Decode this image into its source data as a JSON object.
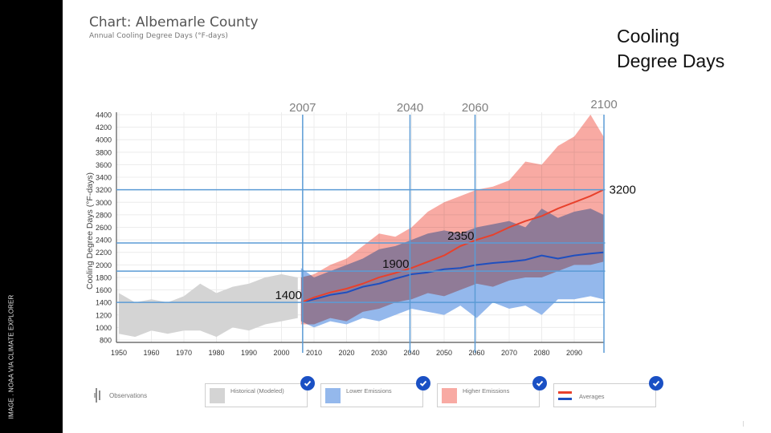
{
  "side_credit": "IMAGE . NOAA VIA CLIMATE EXPLORER",
  "header": {
    "title": "Chart: Albemarle County",
    "subtitle": "Annual Cooling Degree Days (°F-days)"
  },
  "slide_title": {
    "line1": "Cooling",
    "line2": "Degree Days"
  },
  "legend": {
    "observations": "Observations",
    "items": [
      {
        "label": "Historical (Modeled)",
        "checked": true,
        "color": "#d4d4d4"
      },
      {
        "label": "Lower Emissions",
        "checked": true,
        "color": "#94b8ec"
      },
      {
        "label": "Higher Emissions",
        "checked": true,
        "color": "#f8aaa3"
      },
      {
        "label": "Averages",
        "checked": true,
        "colors": [
          "#e8412c",
          "#1f4fbf"
        ]
      }
    ]
  },
  "colors": {
    "annotation_line": "#5b9bd5",
    "check_badge": "#1a50c4",
    "historical_fill": "#d4d4d4",
    "lower_fill": "#94b8ec",
    "higher_fill": "#f8aaa3",
    "higher_avg": "#e8412c",
    "lower_avg": "#1f4fbf"
  },
  "chart_data": {
    "type": "area",
    "title": "Chart: Albemarle County",
    "subtitle": "Annual Cooling Degree Days (°F-days)",
    "xlabel": "",
    "ylabel": "Cooling Degree Days (°F-days)",
    "xlim": [
      1950,
      2099
    ],
    "ylim": [
      800,
      4400
    ],
    "grid": true,
    "legend_position": "bottom",
    "x_ticks": [
      1950,
      1960,
      1970,
      1980,
      1990,
      2000,
      2010,
      2020,
      2030,
      2040,
      2050,
      2060,
      2070,
      2080,
      2090
    ],
    "y_ticks": [
      800,
      1000,
      1200,
      1400,
      1600,
      1800,
      2000,
      2200,
      2400,
      2600,
      2800,
      3000,
      3200,
      3400,
      3600,
      3800,
      4000,
      4200,
      4400
    ],
    "series": [
      {
        "name": "Historical (Modeled)",
        "kind": "band",
        "years": [
          1950,
          1955,
          1960,
          1965,
          1970,
          1975,
          1980,
          1985,
          1990,
          1995,
          2000,
          2005
        ],
        "high": [
          1550,
          1400,
          1450,
          1400,
          1500,
          1700,
          1550,
          1650,
          1700,
          1800,
          1850,
          1800
        ],
        "low": [
          900,
          850,
          950,
          900,
          950,
          950,
          850,
          1000,
          950,
          1050,
          1100,
          1150
        ]
      },
      {
        "name": "Lower Emissions",
        "kind": "band",
        "years": [
          2006,
          2010,
          2015,
          2020,
          2025,
          2030,
          2035,
          2040,
          2045,
          2050,
          2055,
          2060,
          2065,
          2070,
          2075,
          2080,
          2085,
          2090,
          2095,
          2099
        ],
        "high": [
          1950,
          1800,
          1900,
          2000,
          2100,
          2250,
          2300,
          2400,
          2500,
          2550,
          2500,
          2600,
          2650,
          2700,
          2600,
          2900,
          2750,
          2850,
          2900,
          2800
        ],
        "low": [
          1100,
          1000,
          1100,
          1050,
          1150,
          1100,
          1200,
          1300,
          1250,
          1200,
          1350,
          1150,
          1400,
          1300,
          1350,
          1200,
          1450,
          1450,
          1500,
          1450
        ]
      },
      {
        "name": "Higher Emissions",
        "kind": "band",
        "years": [
          2006,
          2010,
          2015,
          2020,
          2025,
          2030,
          2035,
          2040,
          2045,
          2050,
          2055,
          2060,
          2065,
          2070,
          2075,
          2080,
          2085,
          2090,
          2095,
          2099
        ],
        "high": [
          1800,
          1850,
          2000,
          2100,
          2300,
          2500,
          2450,
          2600,
          2850,
          3000,
          3100,
          3200,
          3250,
          3350,
          3650,
          3600,
          3900,
          4050,
          4400,
          4050
        ],
        "low": [
          1050,
          1050,
          1150,
          1100,
          1250,
          1300,
          1400,
          1450,
          1550,
          1500,
          1600,
          1700,
          1650,
          1750,
          1800,
          1800,
          1900,
          2000,
          2000,
          2050
        ]
      },
      {
        "name": "Lower Emissions Average",
        "kind": "line",
        "years": [
          2006,
          2010,
          2015,
          2020,
          2025,
          2030,
          2035,
          2040,
          2045,
          2050,
          2055,
          2060,
          2065,
          2070,
          2075,
          2080,
          2085,
          2090,
          2095,
          2099
        ],
        "values": [
          1400,
          1450,
          1520,
          1560,
          1650,
          1700,
          1780,
          1850,
          1880,
          1930,
          1950,
          2000,
          2030,
          2050,
          2080,
          2150,
          2100,
          2150,
          2180,
          2200
        ]
      },
      {
        "name": "Higher Emissions Average",
        "kind": "line",
        "years": [
          2006,
          2010,
          2015,
          2020,
          2025,
          2030,
          2035,
          2040,
          2045,
          2050,
          2055,
          2060,
          2065,
          2070,
          2075,
          2080,
          2085,
          2090,
          2095,
          2099
        ],
        "values": [
          1400,
          1480,
          1560,
          1620,
          1700,
          1800,
          1870,
          1950,
          2050,
          2150,
          2300,
          2400,
          2480,
          2600,
          2700,
          2780,
          2900,
          3000,
          3100,
          3200
        ]
      }
    ],
    "annotations": {
      "vertical": [
        {
          "label": "2007",
          "year": 2007
        },
        {
          "label": "2040",
          "year": 2040
        },
        {
          "label": "2060",
          "year": 2060
        },
        {
          "label": "2100",
          "year": 2100
        }
      ],
      "horizontal": [
        {
          "label": "1400",
          "value": 1400,
          "label_year": 2007,
          "label_side": "left"
        },
        {
          "label": "1900",
          "value": 1900,
          "label_year": 2040,
          "label_side": "left"
        },
        {
          "label": "2350",
          "value": 2350,
          "label_year": 2060,
          "label_side": "left"
        },
        {
          "label": "3200",
          "value": 3200,
          "label_year": 2100,
          "label_side": "right"
        }
      ]
    }
  }
}
